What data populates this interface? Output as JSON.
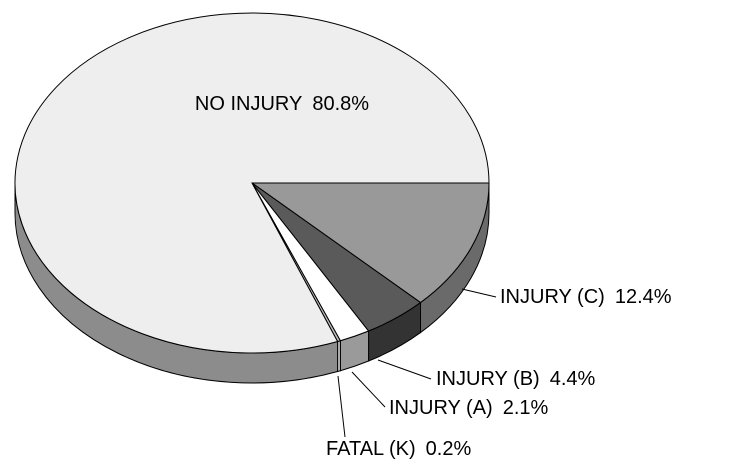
{
  "chart_data": {
    "type": "pie",
    "categories": [
      "NO INJURY",
      "INJURY (C)",
      "INJURY (B)",
      "INJURY (A)",
      "FATAL (K)"
    ],
    "values": [
      80.8,
      12.4,
      4.4,
      2.1,
      0.2
    ],
    "value_labels": [
      "80.8%",
      "12.4%",
      "4.4%",
      "2.1%",
      "0.2%"
    ],
    "colors": [
      "#eeeeee",
      "#999999",
      "#5a5a5a",
      "#ffffff",
      "#bbbbbb"
    ]
  }
}
